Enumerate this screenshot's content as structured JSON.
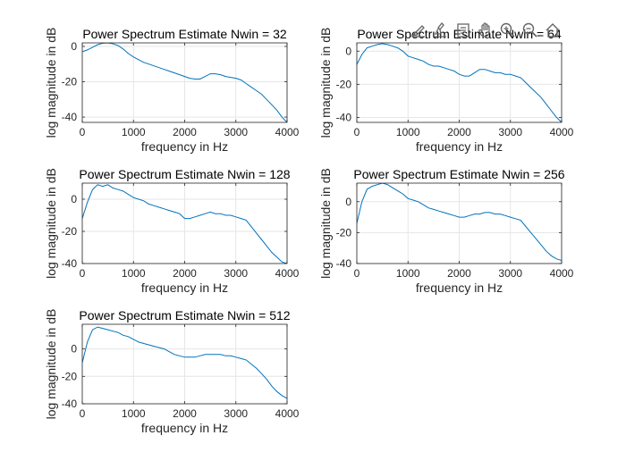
{
  "toolbar": {
    "buttons": [
      {
        "name": "edit-plot-icon"
      },
      {
        "name": "brush-icon"
      },
      {
        "name": "data-tips-icon"
      },
      {
        "name": "pan-icon"
      },
      {
        "name": "zoom-in-icon"
      },
      {
        "name": "zoom-out-icon"
      },
      {
        "name": "home-icon"
      }
    ]
  },
  "colors": {
    "line": "#0072bd",
    "grid": "#e6e6e6",
    "axis": "#262626"
  },
  "chart_data": [
    {
      "type": "line",
      "title": "Power Spectrum Estimate Nwin = 32",
      "xlabel": "frequency in Hz",
      "ylabel": "log magnitude in dB",
      "xlim": [
        0,
        4000
      ],
      "ylim": [
        -43,
        2
      ],
      "xticks": [
        0,
        1000,
        2000,
        3000,
        4000
      ],
      "yticks": [
        0,
        -20,
        -40
      ],
      "grid": true,
      "x": [
        0,
        100,
        200,
        300,
        400,
        500,
        600,
        700,
        800,
        900,
        1000,
        1100,
        1200,
        1300,
        1400,
        1500,
        1600,
        1700,
        1800,
        1900,
        2000,
        2100,
        2200,
        2300,
        2400,
        2500,
        2600,
        2700,
        2800,
        2900,
        3000,
        3100,
        3200,
        3300,
        3400,
        3500,
        3600,
        3700,
        3800,
        3900,
        4000
      ],
      "y": [
        -3,
        -2,
        -0.5,
        1,
        1.8,
        2,
        1.5,
        0.5,
        -1.5,
        -4,
        -6,
        -7.5,
        -9,
        -10,
        -11,
        -12,
        -13,
        -14,
        -15,
        -16,
        -17,
        -18,
        -18.5,
        -18.5,
        -17,
        -15.5,
        -15.5,
        -16,
        -17,
        -17.5,
        -18,
        -19,
        -21,
        -23,
        -25,
        -27,
        -30,
        -33,
        -36,
        -40,
        -43
      ]
    },
    {
      "type": "line",
      "title": "Power Spectrum Estimate Nwin = 64",
      "xlabel": "frequency in Hz",
      "ylabel": "log magnitude in dB",
      "xlim": [
        0,
        4000
      ],
      "ylim": [
        -43,
        5
      ],
      "xticks": [
        0,
        1000,
        2000,
        3000,
        4000
      ],
      "yticks": [
        0,
        -20,
        -40
      ],
      "grid": true,
      "x": [
        0,
        100,
        200,
        300,
        400,
        500,
        600,
        700,
        800,
        900,
        1000,
        1100,
        1200,
        1300,
        1400,
        1500,
        1600,
        1700,
        1800,
        1900,
        2000,
        2100,
        2200,
        2300,
        2400,
        2500,
        2600,
        2700,
        2800,
        2900,
        3000,
        3100,
        3200,
        3300,
        3400,
        3500,
        3600,
        3700,
        3800,
        3900,
        4000
      ],
      "y": [
        -8,
        -2,
        2,
        3,
        4,
        4.5,
        4,
        3,
        2,
        0,
        -3,
        -4,
        -5,
        -6,
        -8,
        -9,
        -9,
        -10,
        -11,
        -12,
        -14,
        -15,
        -15,
        -13,
        -11,
        -11,
        -12,
        -13,
        -13,
        -14,
        -14,
        -15,
        -16,
        -19,
        -22,
        -25,
        -28,
        -32,
        -36,
        -40,
        -43
      ]
    },
    {
      "type": "line",
      "title": "Power Spectrum Estimate Nwin = 128",
      "xlabel": "frequency in Hz",
      "ylabel": "log magnitude in dB",
      "xlim": [
        0,
        4000
      ],
      "ylim": [
        -40,
        10
      ],
      "xticks": [
        0,
        1000,
        2000,
        3000,
        4000
      ],
      "yticks": [
        0,
        -20,
        -40
      ],
      "grid": true,
      "x": [
        0,
        100,
        200,
        300,
        400,
        500,
        600,
        700,
        800,
        900,
        1000,
        1100,
        1200,
        1300,
        1400,
        1500,
        1600,
        1700,
        1800,
        1900,
        2000,
        2100,
        2200,
        2300,
        2400,
        2500,
        2600,
        2700,
        2800,
        2900,
        3000,
        3100,
        3200,
        3300,
        3400,
        3500,
        3600,
        3700,
        3800,
        3900,
        4000
      ],
      "y": [
        -12,
        -2,
        6,
        9,
        8,
        9,
        7,
        6,
        5,
        3,
        1,
        0,
        -1,
        -3,
        -4,
        -5,
        -6,
        -7,
        -8,
        -9,
        -12,
        -12,
        -11,
        -10,
        -9,
        -8,
        -9,
        -9,
        -10,
        -10,
        -11,
        -12,
        -13,
        -17,
        -21,
        -25,
        -29,
        -33,
        -36,
        -39,
        -40
      ]
    },
    {
      "type": "line",
      "title": "Power Spectrum Estimate Nwin = 256",
      "xlabel": "frequency in Hz",
      "ylabel": "log magnitude in dB",
      "xlim": [
        0,
        4000
      ],
      "ylim": [
        -40,
        12
      ],
      "xticks": [
        0,
        1000,
        2000,
        3000,
        4000
      ],
      "yticks": [
        0,
        -20,
        -40
      ],
      "grid": true,
      "x": [
        0,
        100,
        200,
        300,
        400,
        500,
        600,
        700,
        800,
        900,
        1000,
        1100,
        1200,
        1300,
        1400,
        1500,
        1600,
        1700,
        1800,
        1900,
        2000,
        2100,
        2200,
        2300,
        2400,
        2500,
        2600,
        2700,
        2800,
        2900,
        3000,
        3100,
        3200,
        3300,
        3400,
        3500,
        3600,
        3700,
        3800,
        3900,
        4000
      ],
      "y": [
        -14,
        0,
        8,
        10,
        11,
        12,
        11,
        9,
        7,
        5,
        2,
        1,
        0,
        -2,
        -4,
        -5,
        -6,
        -7,
        -8,
        -9,
        -10,
        -10,
        -9,
        -8,
        -8,
        -7,
        -7,
        -8,
        -8,
        -9,
        -10,
        -11,
        -12,
        -16,
        -20,
        -24,
        -28,
        -32,
        -35,
        -37,
        -38
      ]
    },
    {
      "type": "line",
      "title": "Power Spectrum Estimate Nwin = 512",
      "xlabel": "frequency in Hz",
      "ylabel": "log magnitude in dB",
      "xlim": [
        0,
        4000
      ],
      "ylim": [
        -40,
        18
      ],
      "xticks": [
        0,
        1000,
        2000,
        3000,
        4000
      ],
      "yticks": [
        0,
        -20,
        -40
      ],
      "grid": true,
      "x": [
        0,
        100,
        200,
        300,
        400,
        500,
        600,
        700,
        800,
        900,
        1000,
        1100,
        1200,
        1300,
        1400,
        1500,
        1600,
        1700,
        1800,
        1900,
        2000,
        2100,
        2200,
        2300,
        2400,
        2500,
        2600,
        2700,
        2800,
        2900,
        3000,
        3100,
        3200,
        3300,
        3400,
        3500,
        3600,
        3700,
        3800,
        3900,
        4000
      ],
      "y": [
        -10,
        5,
        14,
        16,
        15,
        14,
        13,
        12,
        10,
        9,
        7,
        5,
        4,
        3,
        2,
        1,
        0,
        -2,
        -4,
        -5,
        -6,
        -6,
        -6,
        -5,
        -4,
        -4,
        -4,
        -4,
        -5,
        -5,
        -6,
        -7,
        -8,
        -11,
        -14,
        -18,
        -22,
        -27,
        -31,
        -34,
        -36
      ]
    }
  ]
}
